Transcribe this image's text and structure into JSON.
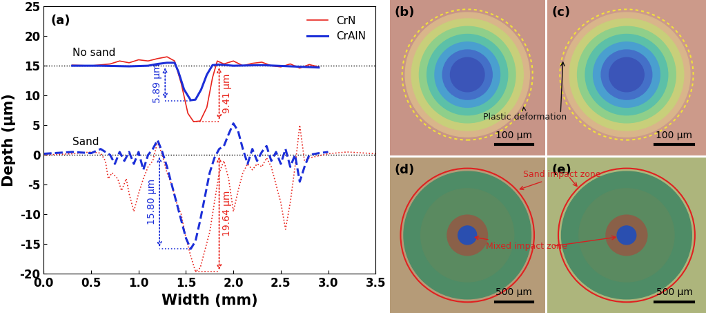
{
  "chart_data": {
    "type": "line",
    "panel_label": "(a)",
    "x_label": "Width (mm)",
    "y_label": "Depth (μm)",
    "xlim": [
      0,
      3.5
    ],
    "xticks": [
      {
        "value": 0,
        "label": "0.0"
      },
      {
        "value": 0.5,
        "label": "0.5"
      },
      {
        "value": 1,
        "label": "1.0"
      },
      {
        "value": 1.5,
        "label": "1.5"
      },
      {
        "value": 2,
        "label": "2.0"
      },
      {
        "value": 2.5,
        "label": "2.5"
      },
      {
        "value": 3,
        "label": "3.0"
      },
      {
        "value": 3.5,
        "label": "3.5"
      }
    ],
    "ylim": [
      -20,
      25
    ],
    "yticks": [
      -20,
      -15,
      -10,
      -5,
      0,
      5,
      10,
      15,
      20,
      25
    ],
    "legend": "upper right",
    "reference_lines": [
      15,
      0
    ],
    "group_labels": [
      {
        "text": "No sand",
        "x": 0.3,
        "y": 16.3
      },
      {
        "text": "Sand",
        "x": 0.3,
        "y": 1.3
      }
    ],
    "series": [
      {
        "name": "CrN",
        "color": "#e8231c",
        "line_style": "solid",
        "x": [
          0.3,
          0.5,
          0.7,
          0.8,
          0.9,
          1.0,
          1.1,
          1.2,
          1.3,
          1.38,
          1.45,
          1.52,
          1.58,
          1.65,
          1.72,
          1.78,
          1.83,
          1.9,
          2.0,
          2.1,
          2.2,
          2.3,
          2.4,
          2.5,
          2.6,
          2.7,
          2.8,
          2.9
        ],
        "values": [
          15.1,
          15.0,
          15.3,
          15.8,
          15.5,
          16.0,
          15.8,
          16.2,
          16.5,
          15.8,
          12.0,
          7.0,
          5.6,
          5.7,
          8.0,
          13.0,
          15.8,
          15.3,
          15.8,
          15.0,
          15.4,
          15.6,
          15.0,
          14.8,
          15.3,
          14.6,
          15.2,
          14.8
        ]
      },
      {
        "name": "CrAlN",
        "color": "#1c2fd8",
        "line_style": "solid",
        "x": [
          0.3,
          0.6,
          0.9,
          1.1,
          1.2,
          1.3,
          1.38,
          1.42,
          1.48,
          1.55,
          1.6,
          1.66,
          1.72,
          1.78,
          1.85,
          2.0,
          2.3,
          2.6,
          2.9
        ],
        "values": [
          15.0,
          15.0,
          14.9,
          15.0,
          15.3,
          15.5,
          15.5,
          14.0,
          11.0,
          9.2,
          9.3,
          11.0,
          13.5,
          15.1,
          15.2,
          15.0,
          15.1,
          14.9,
          14.7
        ]
      },
      {
        "name": "CrN",
        "color": "#e8231c",
        "line_style": "dotted",
        "x": [
          0.0,
          0.3,
          0.5,
          0.6,
          0.65,
          0.68,
          0.72,
          0.78,
          0.82,
          0.87,
          0.9,
          0.95,
          1.0,
          1.05,
          1.1,
          1.15,
          1.2,
          1.25,
          1.3,
          1.35,
          1.4,
          1.45,
          1.5,
          1.55,
          1.6,
          1.65,
          1.7,
          1.75,
          1.8,
          1.85,
          1.9,
          1.95,
          2.0,
          2.05,
          2.1,
          2.15,
          2.2,
          2.25,
          2.3,
          2.35,
          2.4,
          2.45,
          2.5,
          2.55,
          2.6,
          2.65,
          2.7,
          2.75,
          2.8,
          3.0,
          3.2,
          3.5
        ],
        "values": [
          0.0,
          0.2,
          0.5,
          0.3,
          -1.0,
          -4.0,
          -3.0,
          -4.0,
          -6.0,
          -4.0,
          -6.5,
          -9.5,
          -6.5,
          -4.0,
          -2.0,
          -1.0,
          2.2,
          0.0,
          -3.0,
          -5.0,
          -8.0,
          -10.0,
          -14.0,
          -17.0,
          -19.6,
          -19.0,
          -16.0,
          -13.0,
          -8.0,
          -3.0,
          -1.0,
          -4.0,
          -9.5,
          -6.0,
          -3.0,
          -1.5,
          -2.5,
          -1.5,
          -2.0,
          -0.5,
          -2.0,
          -5.0,
          -8.0,
          -12.5,
          -8.0,
          -2.0,
          5.0,
          -1.0,
          -0.5,
          0.2,
          0.5,
          0.2
        ]
      },
      {
        "name": "CrAlN",
        "color": "#1c2fd8",
        "line_style": "dashed",
        "x": [
          0.0,
          0.3,
          0.5,
          0.6,
          0.7,
          0.75,
          0.8,
          0.85,
          0.9,
          0.95,
          1.0,
          1.05,
          1.1,
          1.15,
          1.2,
          1.25,
          1.3,
          1.35,
          1.4,
          1.45,
          1.5,
          1.55,
          1.6,
          1.65,
          1.7,
          1.75,
          1.8,
          1.85,
          1.9,
          1.95,
          2.0,
          2.05,
          2.1,
          2.15,
          2.2,
          2.25,
          2.3,
          2.35,
          2.4,
          2.45,
          2.5,
          2.55,
          2.6,
          2.65,
          2.7,
          2.75,
          2.8,
          2.9,
          3.0
        ],
        "values": [
          0.2,
          0.5,
          0.3,
          1.0,
          0.0,
          -1.5,
          0.5,
          -1.0,
          0.5,
          -1.5,
          0.5,
          -2.5,
          0.0,
          1.0,
          2.5,
          0.5,
          -2.0,
          -5.0,
          -8.0,
          -11.0,
          -14.0,
          -15.8,
          -14.5,
          -11.0,
          -7.0,
          -3.0,
          -0.5,
          1.0,
          1.5,
          3.5,
          5.3,
          4.0,
          1.0,
          -1.5,
          1.0,
          -1.0,
          0.5,
          1.5,
          -1.0,
          0.5,
          -1.5,
          1.0,
          -2.0,
          0.0,
          -4.5,
          -2.0,
          0.0,
          0.3,
          0.5
        ]
      }
    ],
    "measurements": [
      {
        "text": "5.89 μm",
        "x": 1.28,
        "top": 15,
        "bottom": 9.11,
        "color": "#1c2fd8"
      },
      {
        "text": "9.41 μm",
        "x": 1.85,
        "top": 15,
        "bottom": 5.59,
        "color": "#e8231c"
      },
      {
        "text": "15.80 μm",
        "x": 1.22,
        "top": 0,
        "bottom": -15.8,
        "color": "#1c2fd8"
      },
      {
        "text": "19.64 μm",
        "x": 1.85,
        "top": 0,
        "bottom": -19.64,
        "color": "#e8231c"
      }
    ]
  },
  "images": [
    {
      "label": "(b)",
      "type": "indent",
      "scale_bar": "100 μm",
      "color": "#c79487"
    },
    {
      "label": "(c)",
      "type": "indent",
      "scale_bar": "100 μm",
      "color": "#cc9a8a"
    },
    {
      "label": "(d)",
      "type": "erosion",
      "scale_bar": "500 μm",
      "color": "#b59b78"
    },
    {
      "label": "(e)",
      "type": "erosion",
      "scale_bar": "500 μm",
      "color": "#adb57c"
    }
  ],
  "image_notes": [
    {
      "text": "Plastic deformation",
      "color": "#111111",
      "targets": [
        "(b)",
        "(c)"
      ]
    },
    {
      "text": "Sand impact zone",
      "color": "#d62020",
      "targets": [
        "(d)",
        "(e)"
      ]
    },
    {
      "text": "Mixed impact zone",
      "color": "#d62020",
      "targets": [
        "(d)",
        "(e)"
      ]
    }
  ]
}
